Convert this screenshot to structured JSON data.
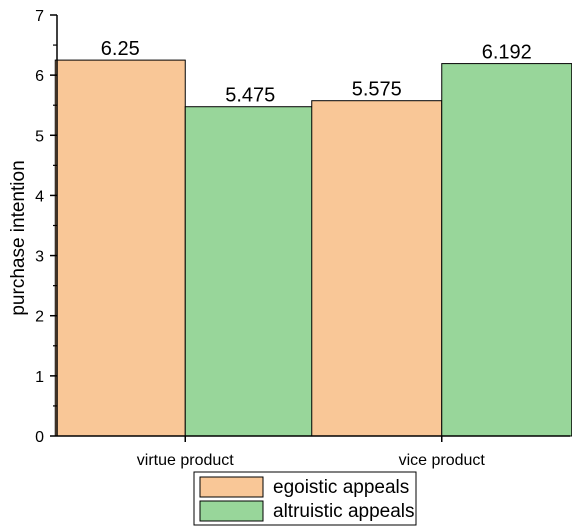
{
  "chart_data": {
    "type": "bar",
    "categories": [
      "virtue product",
      "vice product"
    ],
    "series": [
      {
        "name": "egoistic appeals",
        "values": [
          6.25,
          5.575
        ],
        "color": "#f9c797"
      },
      {
        "name": "altruistic appeals",
        "values": [
          5.475,
          6.192
        ],
        "color": "#98d69a"
      }
    ],
    "data_labels": [
      [
        "6.25",
        "5.575"
      ],
      [
        "5.475",
        "6.192"
      ]
    ],
    "title": "",
    "xlabel": "",
    "ylabel": "purchase intention",
    "ylim": [
      0,
      7
    ],
    "yticks": [
      0,
      1,
      2,
      3,
      4,
      5,
      6,
      7
    ],
    "grid": false,
    "legend_position": "bottom-center"
  }
}
